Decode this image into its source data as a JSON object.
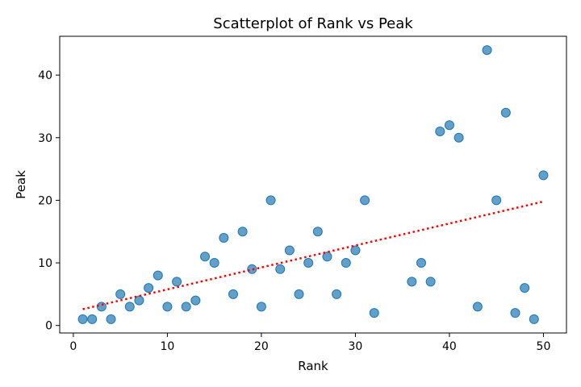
{
  "chart_data": {
    "type": "scatter",
    "title": "Scatterplot of Rank vs Peak",
    "xlabel": "Rank",
    "ylabel": "Peak",
    "xlim": [
      -1.45,
      52.45
    ],
    "ylim": [
      -1.2,
      46.2
    ],
    "xticks": [
      0,
      10,
      20,
      30,
      40,
      50
    ],
    "yticks": [
      0,
      10,
      20,
      30,
      40
    ],
    "grid": false,
    "point_color": "#1f77b4",
    "trend_color": "#ff0000",
    "points": [
      {
        "x": 1,
        "y": 1
      },
      {
        "x": 2,
        "y": 1
      },
      {
        "x": 3,
        "y": 3
      },
      {
        "x": 4,
        "y": 1
      },
      {
        "x": 5,
        "y": 5
      },
      {
        "x": 6,
        "y": 3
      },
      {
        "x": 7,
        "y": 4
      },
      {
        "x": 8,
        "y": 6
      },
      {
        "x": 9,
        "y": 8
      },
      {
        "x": 10,
        "y": 3
      },
      {
        "x": 11,
        "y": 7
      },
      {
        "x": 12,
        "y": 3
      },
      {
        "x": 13,
        "y": 4
      },
      {
        "x": 14,
        "y": 11
      },
      {
        "x": 15,
        "y": 10
      },
      {
        "x": 16,
        "y": 14
      },
      {
        "x": 17,
        "y": 5
      },
      {
        "x": 18,
        "y": 15
      },
      {
        "x": 19,
        "y": 9
      },
      {
        "x": 20,
        "y": 3
      },
      {
        "x": 21,
        "y": 20
      },
      {
        "x": 22,
        "y": 9
      },
      {
        "x": 23,
        "y": 12
      },
      {
        "x": 24,
        "y": 5
      },
      {
        "x": 25,
        "y": 10
      },
      {
        "x": 26,
        "y": 15
      },
      {
        "x": 27,
        "y": 11
      },
      {
        "x": 28,
        "y": 5
      },
      {
        "x": 29,
        "y": 10
      },
      {
        "x": 30,
        "y": 12
      },
      {
        "x": 31,
        "y": 20
      },
      {
        "x": 32,
        "y": 2
      },
      {
        "x": 36,
        "y": 7
      },
      {
        "x": 37,
        "y": 10
      },
      {
        "x": 38,
        "y": 7
      },
      {
        "x": 39,
        "y": 31
      },
      {
        "x": 40,
        "y": 32
      },
      {
        "x": 41,
        "y": 30
      },
      {
        "x": 43,
        "y": 3
      },
      {
        "x": 44,
        "y": 44
      },
      {
        "x": 45,
        "y": 20
      },
      {
        "x": 46,
        "y": 34
      },
      {
        "x": 47,
        "y": 2
      },
      {
        "x": 48,
        "y": 6
      },
      {
        "x": 49,
        "y": 1
      },
      {
        "x": 50,
        "y": 24
      }
    ],
    "trend_line": {
      "x": [
        1,
        50
      ],
      "y": [
        2.6,
        19.8
      ],
      "style": "dotted"
    }
  }
}
